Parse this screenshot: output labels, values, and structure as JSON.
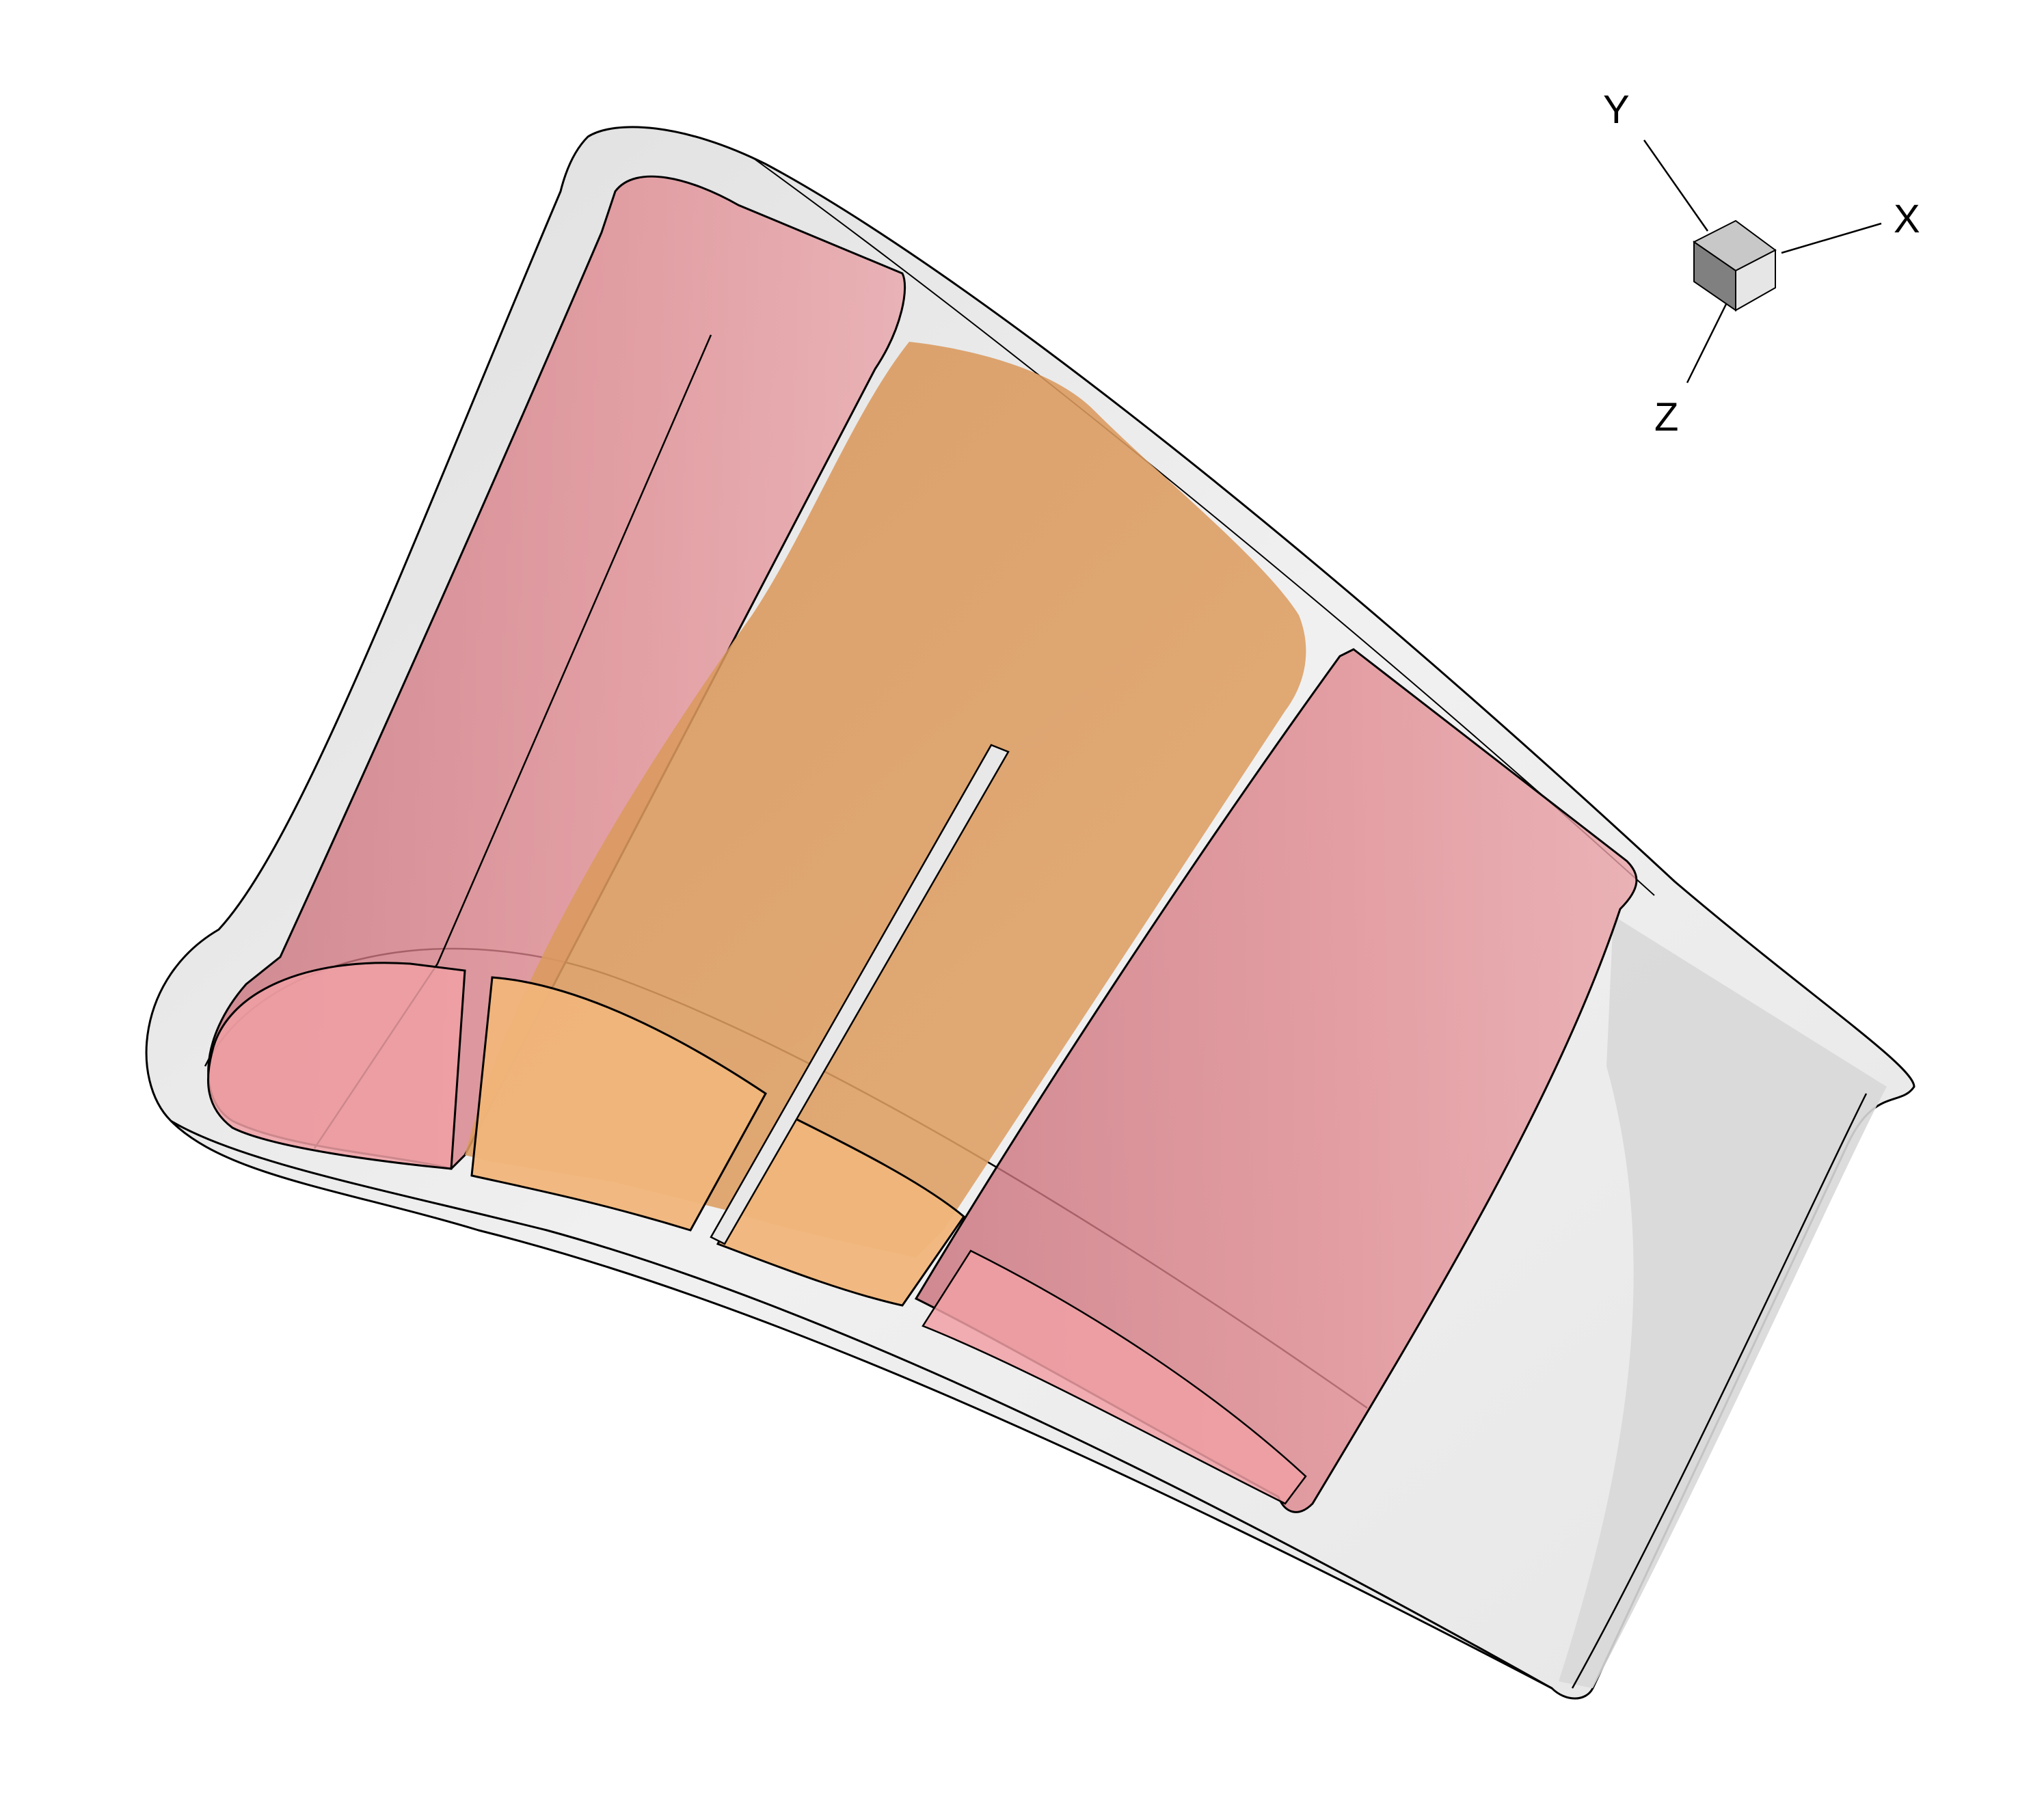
{
  "axes": {
    "x_label": "X",
    "y_label": "Y",
    "z_label": "Z"
  },
  "colors": {
    "background": "#ffffff",
    "blade_shell": "#e8e8e8",
    "blade_trailing_face": "#d6d6d6",
    "leading_cavity": "#e07a80",
    "mid_cavity": "#e8a055",
    "trailing_cavity": "#e0787e",
    "outline": "#000000"
  },
  "parts": [
    {
      "name": "blade-shell",
      "color": "#e8e8e8"
    },
    {
      "name": "leading-edge-cavity",
      "color": "#e07a80"
    },
    {
      "name": "mid-chord-cavity",
      "color": "#e8a055"
    },
    {
      "name": "trailing-cavity",
      "color": "#e0787e"
    }
  ]
}
